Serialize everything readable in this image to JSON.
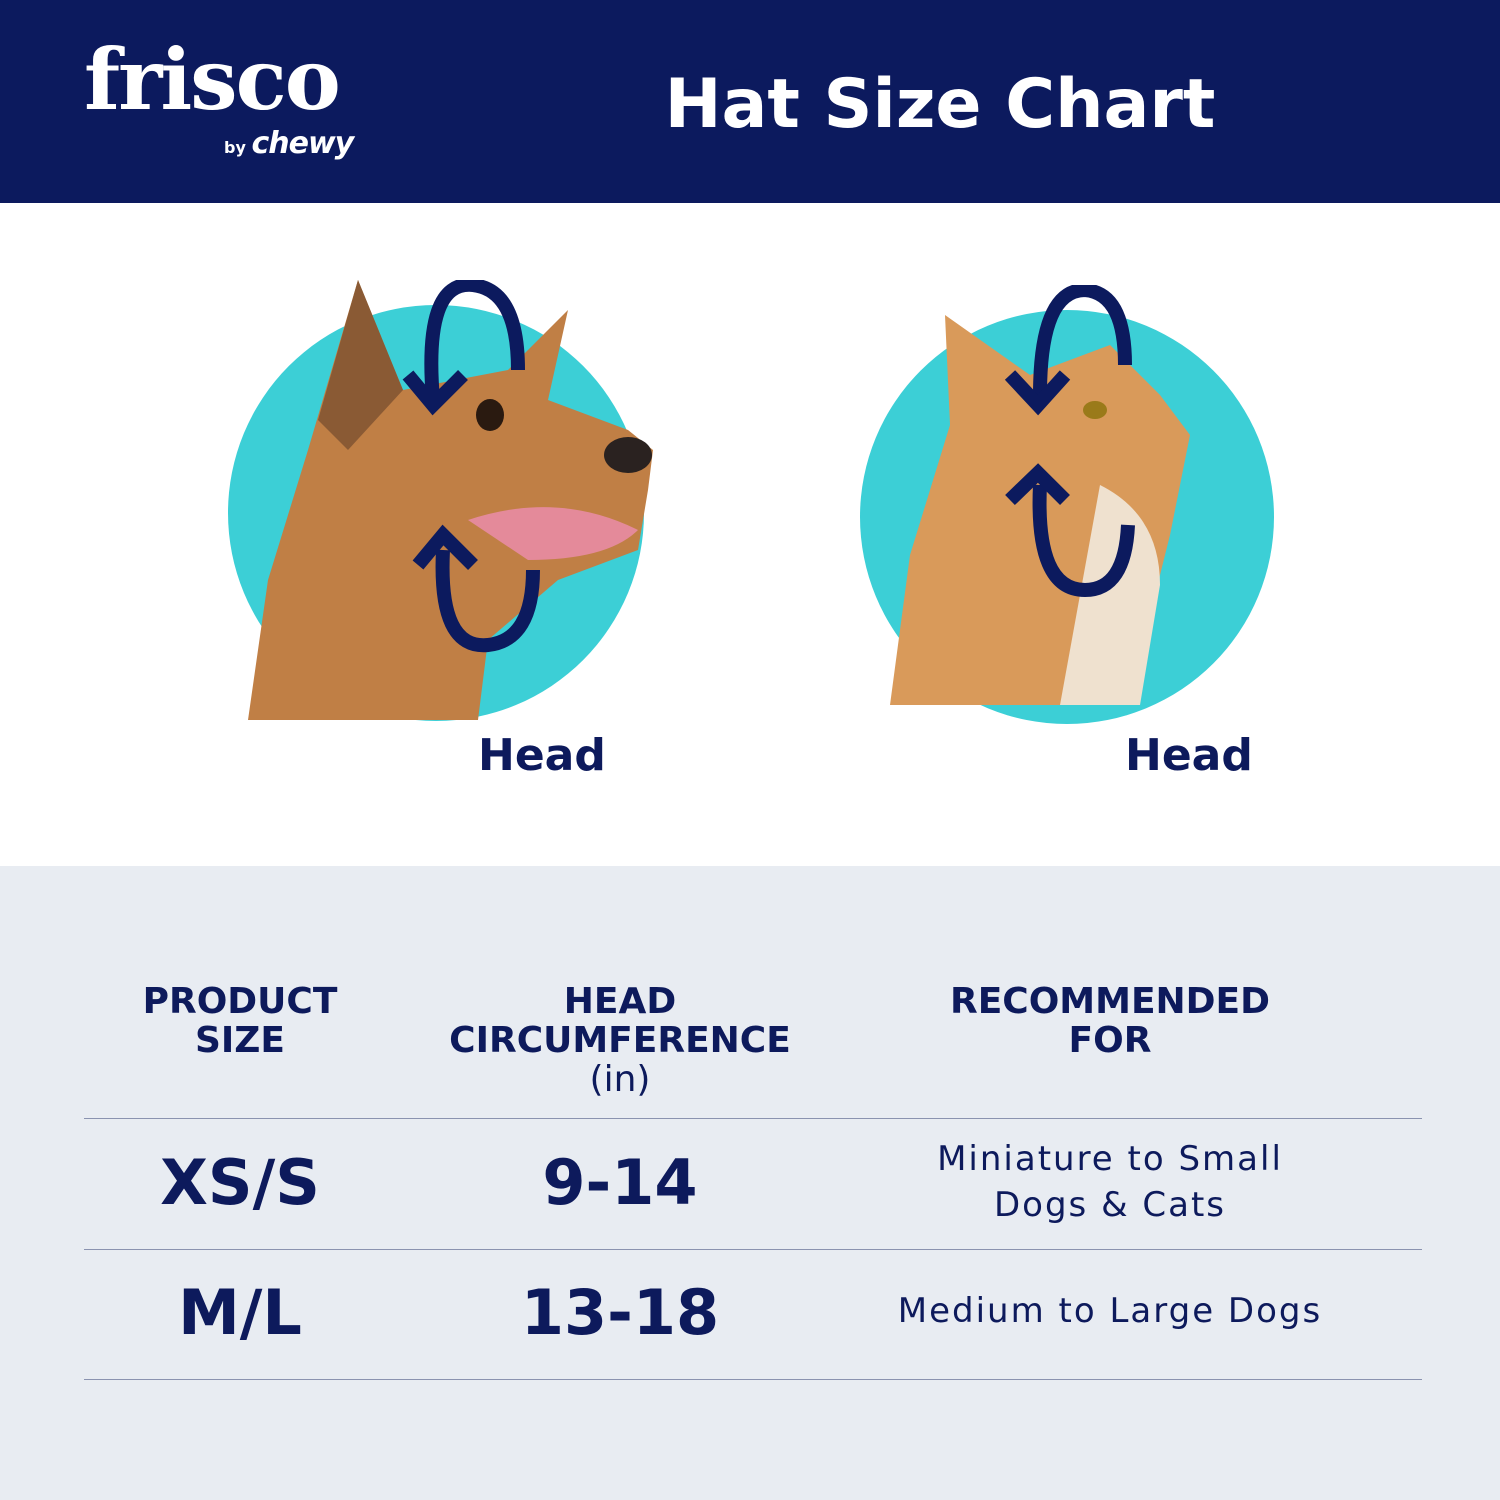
{
  "brand": {
    "logo_text": "frisco",
    "logo_by": "by",
    "logo_sub": "chewy"
  },
  "header": {
    "title": "Hat Size Chart"
  },
  "colors": {
    "navy": "#0c1a5e",
    "teal": "#3ccfd6",
    "table_bg": "#e8ecf2"
  },
  "illustrations": [
    {
      "animal": "dog",
      "label": "Head",
      "icon": "circular-arrows-icon"
    },
    {
      "animal": "cat",
      "label": "Head",
      "icon": "circular-arrows-icon"
    }
  ],
  "table": {
    "headers": [
      {
        "line1": "PRODUCT",
        "line2": "SIZE",
        "line3": ""
      },
      {
        "line1": "HEAD",
        "line2": "CIRCUMFERENCE",
        "line3": "(in)"
      },
      {
        "line1": "RECOMMENDED",
        "line2": "FOR",
        "line3": ""
      }
    ],
    "rows": [
      {
        "size": "XS/S",
        "circumference": "9-14",
        "recommended_line1": "Miniature to Small",
        "recommended_line2": "Dogs & Cats"
      },
      {
        "size": "M/L",
        "circumference": "13-18",
        "recommended_line1": "Medium to Large Dogs",
        "recommended_line2": ""
      }
    ]
  }
}
